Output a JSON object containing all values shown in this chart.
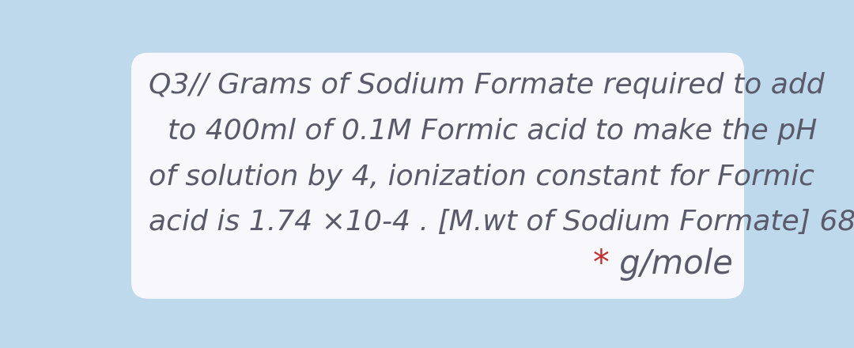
{
  "background_color": "#bed8ec",
  "card_color": "#f8f8fc",
  "line1": "Q3// Grams of Sodium Formate required to add",
  "line2": "to 400ml of 0.1M Formic acid to make the pH",
  "line3": "of solution by 4, ionization constant for Formic",
  "line4": "acid is 1.74 ×10-4 . [M.wt of Sodium Formate] 68",
  "line5_star": "*",
  "line5_text": " g/mole",
  "star_color": "#c03030",
  "text_color": "#5a5a6a",
  "font_size_main": 26,
  "font_size_last": 30,
  "font_family": "Palatino Linotype"
}
